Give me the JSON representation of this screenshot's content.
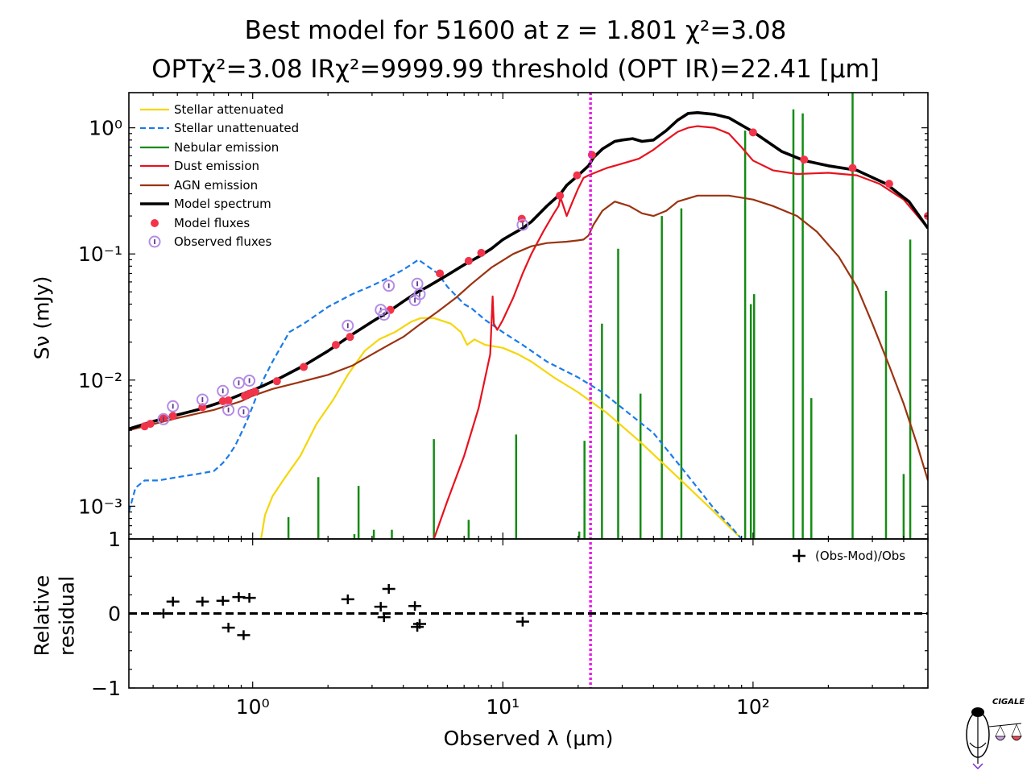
{
  "title": {
    "line1": "Best model for 51600 at z = 1.801 χ²=3.08",
    "line2": "OPTχ²=3.08 IRχ²=9999.99 threshold (OPT IR)=22.41  [μm]"
  },
  "colors": {
    "stellar_attenuated": "#f5d60a",
    "stellar_unattenuated": "#1a7be8",
    "nebular": "#148c14",
    "dust": "#e8121e",
    "agn": "#9a3310",
    "model": "#000000",
    "model_flux": "#f2344a",
    "observed_flux": "#b48ce6",
    "threshold": "#e81ee8"
  },
  "logo_text": "CIGALE",
  "chart_data": [
    {
      "type": "line",
      "scale": {
        "x": "log",
        "y": "log"
      },
      "xlim": [
        0.32,
        500
      ],
      "ylim": [
        0.00055,
        1.9
      ],
      "ylabel": "Sν (mJy)",
      "yticks": [
        {
          "value": 0.001,
          "label": "10⁻³"
        },
        {
          "value": 0.01,
          "label": "10⁻²"
        },
        {
          "value": 0.1,
          "label": "10⁻¹"
        },
        {
          "value": 1,
          "label": "10⁰"
        }
      ],
      "legend": {
        "placement": "upper-left",
        "entries": [
          {
            "key": "stellar_attenuated",
            "label": "Stellar attenuated",
            "style": "solid"
          },
          {
            "key": "stellar_unattenuated",
            "label": "Stellar unattenuated",
            "style": "dashed"
          },
          {
            "key": "nebular",
            "label": "Nebular emission",
            "style": "solid"
          },
          {
            "key": "dust",
            "label": "Dust emission",
            "style": "solid"
          },
          {
            "key": "agn",
            "label": "AGN emission",
            "style": "solid"
          },
          {
            "key": "model",
            "label": "Model spectrum",
            "style": "thick"
          },
          {
            "key": "model_flux",
            "label": "Model fluxes",
            "style": "dot"
          },
          {
            "key": "observed_flux",
            "label": "Observed fluxes",
            "style": "ring"
          }
        ]
      },
      "threshold_x": 22.41,
      "series": [
        {
          "key": "stellar_attenuated",
          "x": [
            1.08,
            1.12,
            1.2,
            1.35,
            1.55,
            1.8,
            2.1,
            2.4,
            2.8,
            3.2,
            3.7,
            4.3,
            4.7,
            5.3,
            6.2,
            6.8,
            7.2,
            7.7,
            8.5,
            10,
            11.5,
            13,
            16,
            20,
            26,
            35,
            50,
            70,
            90
          ],
          "y": [
            0.00055,
            0.00085,
            0.0012,
            0.0017,
            0.0025,
            0.0045,
            0.007,
            0.011,
            0.017,
            0.021,
            0.024,
            0.029,
            0.031,
            0.031,
            0.028,
            0.024,
            0.019,
            0.021,
            0.019,
            0.018,
            0.016,
            0.014,
            0.0105,
            0.008,
            0.0055,
            0.0033,
            0.0017,
            0.0009,
            0.00055
          ]
        },
        {
          "key": "stellar_unattenuated",
          "x": [
            0.32,
            0.34,
            0.37,
            0.42,
            0.5,
            0.6,
            0.7,
            0.76,
            0.8,
            0.85,
            0.9,
            0.95,
            1.0,
            1.05,
            1.1,
            1.2,
            1.4,
            1.6,
            2.0,
            2.5,
            3.0,
            3.5,
            4.0,
            4.6,
            5.0,
            5.5,
            6.0,
            7.0,
            7.5,
            8.5,
            10,
            12,
            15,
            20,
            25,
            30,
            40,
            50,
            60,
            70,
            80,
            90
          ],
          "y": [
            0.0009,
            0.0014,
            0.0016,
            0.0016,
            0.0017,
            0.0018,
            0.0019,
            0.0022,
            0.0025,
            0.003,
            0.0038,
            0.0048,
            0.0062,
            0.008,
            0.01,
            0.014,
            0.024,
            0.028,
            0.038,
            0.048,
            0.056,
            0.065,
            0.075,
            0.09,
            0.08,
            0.07,
            0.055,
            0.04,
            0.037,
            0.03,
            0.024,
            0.019,
            0.014,
            0.0105,
            0.008,
            0.006,
            0.0038,
            0.0022,
            0.0014,
            0.00095,
            0.00072,
            0.00055
          ]
        },
        {
          "key": "dust",
          "x": [
            5.3,
            6.0,
            7.0,
            8.0,
            8.9,
            9.1,
            9.2,
            9.5,
            10,
            11,
            12,
            13,
            14.5,
            16,
            16.7,
            17,
            18,
            19,
            20,
            21,
            22,
            24,
            26,
            30,
            35,
            40,
            45,
            50,
            55,
            60,
            70,
            80,
            90,
            100,
            120,
            150,
            200,
            260,
            320,
            400,
            500
          ],
          "y": [
            0.00055,
            0.0011,
            0.0025,
            0.006,
            0.016,
            0.046,
            0.028,
            0.025,
            0.03,
            0.045,
            0.07,
            0.1,
            0.15,
            0.21,
            0.24,
            0.28,
            0.2,
            0.26,
            0.33,
            0.4,
            0.42,
            0.45,
            0.48,
            0.52,
            0.57,
            0.67,
            0.8,
            0.93,
            1.0,
            1.03,
            1.0,
            0.9,
            0.7,
            0.55,
            0.46,
            0.43,
            0.44,
            0.42,
            0.36,
            0.27,
            0.16
          ]
        },
        {
          "key": "agn",
          "x": [
            0.32,
            0.5,
            0.7,
            0.9,
            1.0,
            1.2,
            1.5,
            2.0,
            2.5,
            3.0,
            3.5,
            4.0,
            4.7,
            5.5,
            6.5,
            7.5,
            9.0,
            11,
            13,
            15,
            18,
            20,
            21,
            22,
            23,
            25,
            28,
            32,
            36,
            40,
            45,
            50,
            60,
            80,
            100,
            120,
            150,
            180,
            220,
            260,
            300,
            350,
            400,
            450,
            500
          ],
          "y": [
            0.004,
            0.005,
            0.0058,
            0.0068,
            0.0075,
            0.0085,
            0.0095,
            0.011,
            0.013,
            0.016,
            0.019,
            0.022,
            0.028,
            0.035,
            0.045,
            0.058,
            0.078,
            0.1,
            0.115,
            0.122,
            0.125,
            0.128,
            0.13,
            0.14,
            0.17,
            0.22,
            0.26,
            0.24,
            0.21,
            0.2,
            0.22,
            0.26,
            0.29,
            0.29,
            0.27,
            0.24,
            0.2,
            0.15,
            0.095,
            0.055,
            0.028,
            0.013,
            0.0065,
            0.0032,
            0.0016
          ]
        },
        {
          "key": "model",
          "x": [
            0.32,
            0.4,
            0.5,
            0.6,
            0.7,
            0.8,
            0.9,
            1.0,
            1.1,
            1.3,
            1.6,
            2.0,
            2.5,
            3.0,
            3.5,
            4.0,
            4.5,
            5.0,
            6.0,
            7.0,
            8.0,
            9.0,
            10,
            11,
            12,
            13,
            15,
            17,
            18,
            20,
            22,
            23,
            25,
            28,
            30,
            33,
            36,
            40,
            45,
            50,
            55,
            60,
            70,
            80,
            100,
            130,
            160,
            200,
            260,
            340,
            420,
            500
          ],
          "y": [
            0.0041,
            0.0047,
            0.0053,
            0.0058,
            0.0064,
            0.007,
            0.0077,
            0.0083,
            0.009,
            0.0105,
            0.013,
            0.017,
            0.023,
            0.029,
            0.035,
            0.042,
            0.049,
            0.055,
            0.068,
            0.082,
            0.095,
            0.11,
            0.13,
            0.145,
            0.16,
            0.18,
            0.24,
            0.3,
            0.35,
            0.42,
            0.5,
            0.58,
            0.68,
            0.78,
            0.8,
            0.82,
            0.78,
            0.8,
            0.95,
            1.15,
            1.3,
            1.32,
            1.28,
            1.2,
            0.93,
            0.65,
            0.55,
            0.5,
            0.46,
            0.36,
            0.26,
            0.16
          ]
        }
      ],
      "nebular_lines": [
        {
          "x": 1.39,
          "y": 0.00082
        },
        {
          "x": 1.83,
          "y": 0.0017
        },
        {
          "x": 2.55,
          "y": 0.0006
        },
        {
          "x": 2.65,
          "y": 0.00145
        },
        {
          "x": 3.05,
          "y": 0.00065
        },
        {
          "x": 3.6,
          "y": 0.00065
        },
        {
          "x": 5.3,
          "y": 0.0034
        },
        {
          "x": 7.3,
          "y": 0.00078
        },
        {
          "x": 11.3,
          "y": 0.0037
        },
        {
          "x": 20.2,
          "y": 0.00063
        },
        {
          "x": 21.2,
          "y": 0.0033
        },
        {
          "x": 24.9,
          "y": 0.028
        },
        {
          "x": 28.9,
          "y": 0.11
        },
        {
          "x": 35.5,
          "y": 0.0078
        },
        {
          "x": 43.2,
          "y": 0.2
        },
        {
          "x": 51.7,
          "y": 0.23
        },
        {
          "x": 93.0,
          "y": 0.95
        },
        {
          "x": 98.0,
          "y": 0.04
        },
        {
          "x": 101.0,
          "y": 0.048
        },
        {
          "x": 145.0,
          "y": 1.4
        },
        {
          "x": 158.0,
          "y": 1.3
        },
        {
          "x": 171.0,
          "y": 0.0072
        },
        {
          "x": 250.0,
          "y": 1.9
        },
        {
          "x": 340.0,
          "y": 0.051
        },
        {
          "x": 400.0,
          "y": 0.0018
        },
        {
          "x": 425.0,
          "y": 0.13
        }
      ],
      "model_fluxes": {
        "x": [
          0.37,
          0.39,
          0.44,
          0.48,
          0.63,
          0.76,
          0.8,
          0.93,
          0.97,
          1.02,
          1.25,
          1.6,
          2.15,
          2.45,
          3.55,
          5.6,
          7.3,
          8.2,
          11.9,
          16.9,
          19.8,
          22.7,
          100,
          160,
          250,
          350,
          500
        ],
        "y": [
          0.0043,
          0.0045,
          0.005,
          0.0052,
          0.0061,
          0.0068,
          0.0069,
          0.0075,
          0.0078,
          0.0081,
          0.0098,
          0.0127,
          0.019,
          0.022,
          0.036,
          0.07,
          0.088,
          0.102,
          0.19,
          0.29,
          0.42,
          0.61,
          0.92,
          0.56,
          0.48,
          0.36,
          0.2
        ]
      },
      "observed_fluxes": {
        "x": [
          0.44,
          0.48,
          0.63,
          0.76,
          0.8,
          0.88,
          0.92,
          0.97,
          2.4,
          3.25,
          3.35,
          3.5,
          4.45,
          4.55,
          4.65,
          12.0
        ],
        "y": [
          0.0049,
          0.0062,
          0.007,
          0.0082,
          0.0058,
          0.0095,
          0.0056,
          0.0099,
          0.027,
          0.036,
          0.033,
          0.056,
          0.043,
          0.058,
          0.048,
          0.17
        ]
      }
    },
    {
      "type": "scatter",
      "scale": {
        "x": "log",
        "y": "linear"
      },
      "xlim": [
        0.32,
        500
      ],
      "ylim": [
        -1,
        1
      ],
      "xlabel": "Observed λ (μm)",
      "ylabel_line1": "Relative",
      "ylabel_line2": "residual",
      "xticks": [
        {
          "value": 1,
          "label": "10⁰"
        },
        {
          "value": 10,
          "label": "10¹"
        },
        {
          "value": 100,
          "label": "10²"
        }
      ],
      "yticks": [
        {
          "value": -1,
          "label": "−1"
        },
        {
          "value": 0,
          "label": "0"
        },
        {
          "value": 1,
          "label": "1"
        }
      ],
      "legend_label": "(Obs-Mod)/Obs",
      "residuals": {
        "x": [
          0.44,
          0.48,
          0.63,
          0.76,
          0.8,
          0.88,
          0.92,
          0.97,
          2.4,
          3.25,
          3.35,
          3.5,
          4.45,
          4.55,
          4.65,
          12.0
        ],
        "y": [
          0.0,
          0.16,
          0.16,
          0.17,
          -0.19,
          0.22,
          -0.29,
          0.21,
          0.19,
          0.09,
          -0.05,
          0.33,
          0.1,
          -0.18,
          -0.14,
          -0.11
        ]
      }
    }
  ]
}
